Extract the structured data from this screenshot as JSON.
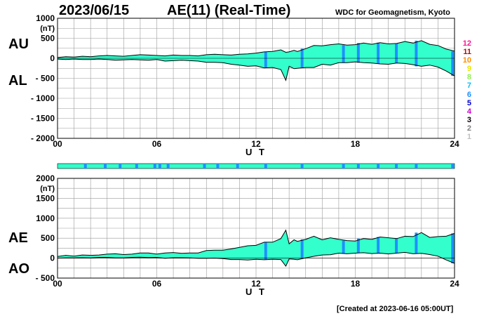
{
  "header": {
    "date": "2023/06/15",
    "title": "AE(11) (Real-Time)",
    "org": "WDC for Geomagnetism, Kyoto"
  },
  "footer": {
    "created": "[Created at 2023-06-16 05:00UT]"
  },
  "panel_labels": {
    "top_upper": "AU",
    "top_lower": "AL",
    "bottom_upper": "AE",
    "bottom_lower": "AO"
  },
  "legend": {
    "items": [
      {
        "label": "12",
        "color": "#ff1493"
      },
      {
        "label": "11",
        "color": "#cc0000"
      },
      {
        "label": "10",
        "color": "#ff8c00"
      },
      {
        "label": "9",
        "color": "#e6e600"
      },
      {
        "label": "8",
        "color": "#90ee50"
      },
      {
        "label": "7",
        "color": "#00bfff"
      },
      {
        "label": "6",
        "color": "#1e90ff"
      },
      {
        "label": "5",
        "color": "#0000cd"
      },
      {
        "label": "4",
        "color": "#cc00cc"
      },
      {
        "label": "3",
        "color": "#000000"
      },
      {
        "label": "2",
        "color": "#808080"
      },
      {
        "label": "1",
        "color": "#c0c0c0"
      }
    ]
  },
  "colors": {
    "fill": "#33ffcc",
    "band": "#1e90ff"
  },
  "chart_data": [
    {
      "type": "area",
      "name": "AU/AL",
      "ylabel": "(nT)",
      "xlabel": "U T",
      "xlim": [
        0,
        24
      ],
      "ylim": [
        -2000,
        1000
      ],
      "x_ticks": [
        "00",
        "06",
        "12",
        "18",
        "24"
      ],
      "y_ticks": [
        "1000",
        "500",
        "0",
        "- 500",
        "- 1000",
        "- 1500",
        "- 2000"
      ],
      "x": [
        0,
        0.5,
        1,
        1.5,
        2,
        2.5,
        3,
        3.5,
        4,
        4.5,
        5,
        5.5,
        6,
        6.5,
        7,
        7.5,
        8,
        8.5,
        9,
        9.5,
        10,
        10.5,
        11,
        11.5,
        12,
        12.5,
        13,
        13.5,
        13.8,
        14,
        14.3,
        14.5,
        15,
        15.5,
        16,
        16.5,
        17,
        17.5,
        18,
        18.5,
        19,
        19.5,
        20,
        20.5,
        21,
        21.5,
        22,
        22.5,
        23,
        23.5,
        24
      ],
      "series": [
        {
          "name": "AU",
          "values": [
            20,
            40,
            30,
            50,
            40,
            60,
            70,
            60,
            50,
            70,
            90,
            80,
            70,
            60,
            80,
            70,
            70,
            60,
            90,
            100,
            90,
            80,
            100,
            110,
            130,
            160,
            170,
            210,
            150,
            160,
            200,
            170,
            240,
            320,
            310,
            340,
            360,
            330,
            340,
            380,
            350,
            390,
            360,
            370,
            420,
            380,
            440,
            350,
            320,
            230,
            180
          ]
        },
        {
          "name": "AL",
          "values": [
            -20,
            -30,
            -20,
            -30,
            -30,
            -20,
            -30,
            -50,
            -40,
            -30,
            -40,
            -50,
            -30,
            -70,
            -60,
            -50,
            -60,
            -70,
            -100,
            -100,
            -110,
            -150,
            -170,
            -200,
            -190,
            -240,
            -230,
            -280,
            -550,
            -200,
            -260,
            -250,
            -230,
            -230,
            -150,
            -170,
            -110,
            -110,
            -90,
            -110,
            -120,
            -140,
            -150,
            -120,
            -130,
            -160,
            -200,
            -170,
            -220,
            -320,
            -440
          ]
        }
      ]
    },
    {
      "type": "area",
      "name": "AE/AO",
      "ylabel": "(nT)",
      "xlabel": "U T",
      "xlim": [
        0,
        24
      ],
      "ylim": [
        -500,
        2000
      ],
      "x_ticks": [
        "00",
        "06",
        "12",
        "18",
        "24"
      ],
      "y_ticks": [
        "2000",
        "1500",
        "1000",
        "500",
        "0",
        "- 500"
      ],
      "x": [
        0,
        0.5,
        1,
        1.5,
        2,
        2.5,
        3,
        3.5,
        4,
        4.5,
        5,
        5.5,
        6,
        6.5,
        7,
        7.5,
        8,
        8.5,
        9,
        9.5,
        10,
        10.5,
        11,
        11.5,
        12,
        12.5,
        13,
        13.5,
        13.8,
        14,
        14.3,
        14.5,
        15,
        15.5,
        16,
        16.5,
        17,
        17.5,
        18,
        18.5,
        19,
        19.5,
        20,
        20.5,
        21,
        21.5,
        22,
        22.5,
        23,
        23.5,
        24
      ],
      "series": [
        {
          "name": "AE",
          "values": [
            40,
            70,
            50,
            80,
            70,
            80,
            100,
            110,
            90,
            100,
            130,
            130,
            100,
            130,
            140,
            120,
            130,
            130,
            190,
            200,
            200,
            230,
            270,
            310,
            320,
            400,
            400,
            490,
            700,
            360,
            460,
            420,
            470,
            550,
            460,
            510,
            470,
            440,
            430,
            490,
            470,
            530,
            510,
            490,
            550,
            540,
            640,
            520,
            540,
            550,
            620
          ]
        },
        {
          "name": "AO",
          "values": [
            0,
            5,
            5,
            10,
            5,
            20,
            20,
            5,
            5,
            20,
            25,
            15,
            20,
            -5,
            10,
            10,
            5,
            -5,
            -5,
            0,
            -10,
            -35,
            -35,
            -45,
            -30,
            -40,
            -30,
            -35,
            -200,
            -20,
            -30,
            -40,
            5,
            45,
            80,
            85,
            125,
            110,
            125,
            135,
            115,
            125,
            105,
            125,
            145,
            110,
            120,
            90,
            50,
            -45,
            -130
          ]
        }
      ]
    }
  ]
}
